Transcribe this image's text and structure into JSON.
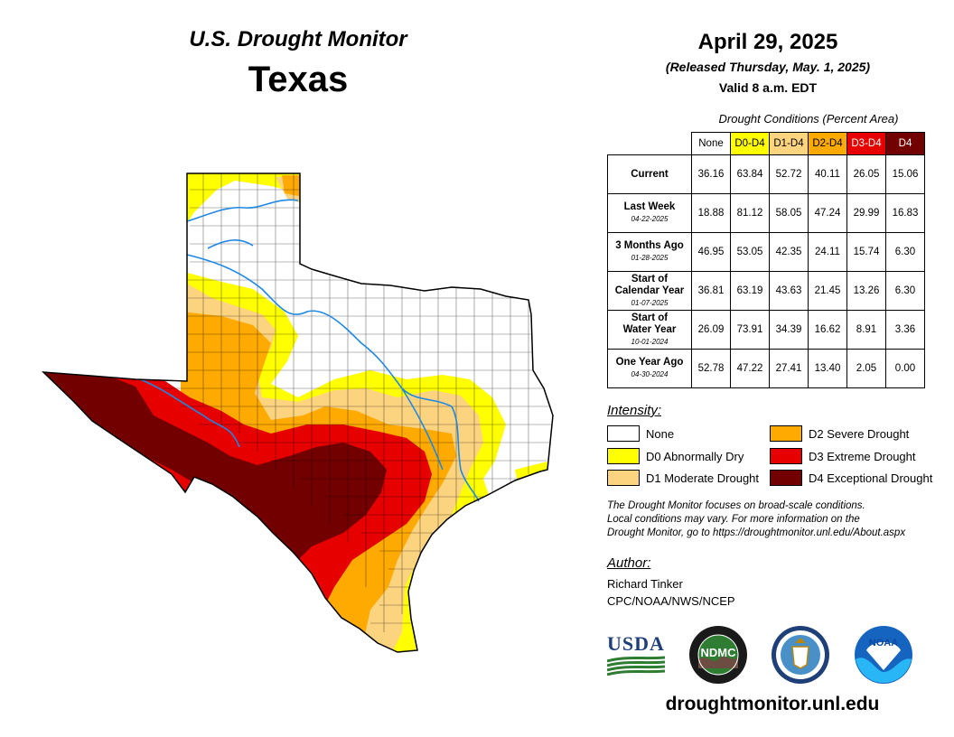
{
  "header": {
    "product": "U.S. Drought Monitor",
    "region": "Texas",
    "date": "April 29, 2025",
    "released": "(Released Thursday, May. 1, 2025)",
    "valid": "Valid 8 a.m. EDT"
  },
  "table": {
    "caption": "Drought Conditions (Percent Area)",
    "columns": [
      {
        "label": "None",
        "bg": "#ffffff",
        "fg": "#000000"
      },
      {
        "label": "D0-D4",
        "bg": "#ffff00",
        "fg": "#000000"
      },
      {
        "label": "D1-D4",
        "bg": "#fcd37f",
        "fg": "#000000"
      },
      {
        "label": "D2-D4",
        "bg": "#ffaa00",
        "fg": "#000000"
      },
      {
        "label": "D3-D4",
        "bg": "#e60000",
        "fg": "#ffffff"
      },
      {
        "label": "D4",
        "bg": "#730000",
        "fg": "#ffffff"
      }
    ],
    "rows": [
      {
        "label": "Current",
        "label2": "",
        "date": "",
        "values": [
          "36.16",
          "63.84",
          "52.72",
          "40.11",
          "26.05",
          "15.06"
        ]
      },
      {
        "label": "Last Week",
        "label2": "",
        "date": "04-22-2025",
        "values": [
          "18.88",
          "81.12",
          "58.05",
          "47.24",
          "29.99",
          "16.83"
        ]
      },
      {
        "label": "3 Months Ago",
        "label2": "",
        "date": "01-28-2025",
        "values": [
          "46.95",
          "53.05",
          "42.35",
          "24.11",
          "15.74",
          "6.30"
        ]
      },
      {
        "label": "Start of",
        "label2": "Calendar Year",
        "date": "01-07-2025",
        "values": [
          "36.81",
          "63.19",
          "43.63",
          "21.45",
          "13.26",
          "6.30"
        ]
      },
      {
        "label": "Start of",
        "label2": "Water Year",
        "date": "10-01-2024",
        "values": [
          "26.09",
          "73.91",
          "34.39",
          "16.62",
          "8.91",
          "3.36"
        ]
      },
      {
        "label": "One Year Ago",
        "label2": "",
        "date": "04-30-2024",
        "values": [
          "52.78",
          "47.22",
          "27.41",
          "13.40",
          "2.05",
          "0.00"
        ]
      }
    ]
  },
  "legend": {
    "title": "Intensity:",
    "items": [
      {
        "label": "None",
        "color": "#ffffff"
      },
      {
        "label": "D0 Abnormally Dry",
        "color": "#ffff00"
      },
      {
        "label": "D1 Moderate Drought",
        "color": "#fcd37f"
      },
      {
        "label": "D2 Severe Drought",
        "color": "#ffaa00"
      },
      {
        "label": "D3 Extreme Drought",
        "color": "#e60000"
      },
      {
        "label": "D4 Exceptional Drought",
        "color": "#730000"
      }
    ]
  },
  "note": {
    "line1": "The Drought Monitor focuses on broad-scale conditions.",
    "line2": "Local conditions may vary. For more information on the",
    "line3": "Drought Monitor, go to https://droughtmonitor.unl.edu/About.aspx"
  },
  "author": {
    "heading": "Author:",
    "name": "Richard Tinker",
    "org": "CPC/NOAA/NWS/NCEP"
  },
  "logos": {
    "usda": "USDA",
    "ndmc": "NDMC",
    "noaa": "NOAA"
  },
  "footer": {
    "url": "droughtmonitor.unl.edu"
  }
}
